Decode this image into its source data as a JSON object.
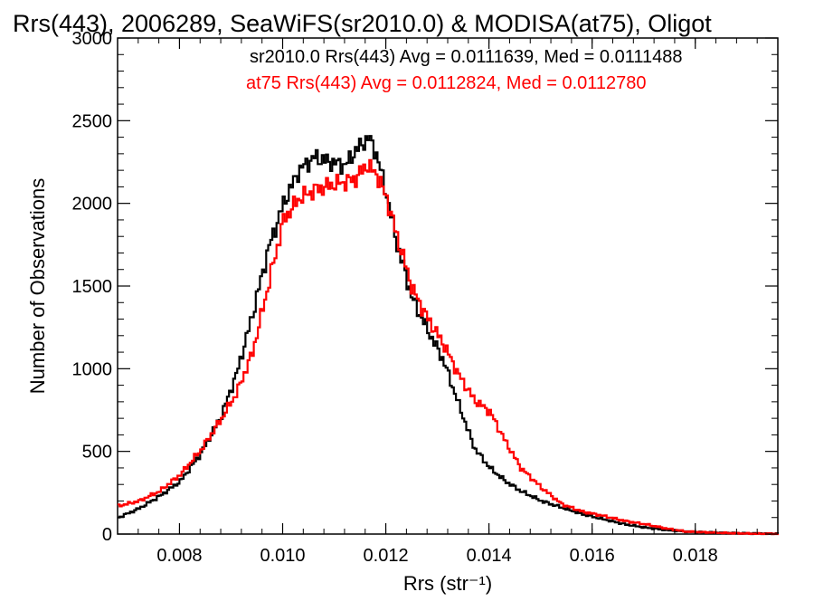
{
  "chart_data": {
    "type": "line",
    "title": "Rrs(443), 2006289, SeaWiFS(sr2010.0) & MODISA(at75), Oligot",
    "xlabel": "Rrs (str⁻¹)",
    "ylabel": "Number of Observations",
    "xlim": [
      0.0068,
      0.0196
    ],
    "ylim": [
      0,
      3000
    ],
    "x_ticks": [
      "0.008",
      "0.010",
      "0.012",
      "0.014",
      "0.016",
      "0.018"
    ],
    "y_ticks": [
      "0",
      "500",
      "1000",
      "1500",
      "2000",
      "2500",
      "3000"
    ],
    "annotations": [
      "sr2010.0 Rrs(443) Avg = 0.0111639, Med = 0.0111488",
      "at75 Rrs(443) Avg = 0.0112824, Med = 0.0112780"
    ],
    "series": [
      {
        "color": "#000000",
        "points": [
          [
            0.0068,
            100
          ],
          [
            0.0072,
            155
          ],
          [
            0.0076,
            230
          ],
          [
            0.008,
            320
          ],
          [
            0.0084,
            490
          ],
          [
            0.0088,
            720
          ],
          [
            0.0091,
            980
          ],
          [
            0.0094,
            1330
          ],
          [
            0.0097,
            1720
          ],
          [
            0.01,
            2000
          ],
          [
            0.0103,
            2200
          ],
          [
            0.0106,
            2280
          ],
          [
            0.0109,
            2250
          ],
          [
            0.0112,
            2230
          ],
          [
            0.0114,
            2320
          ],
          [
            0.01165,
            2400
          ],
          [
            0.0118,
            2300
          ],
          [
            0.012,
            2050
          ],
          [
            0.0122,
            1750
          ],
          [
            0.0125,
            1420
          ],
          [
            0.0128,
            1230
          ],
          [
            0.0131,
            1050
          ],
          [
            0.0134,
            780
          ],
          [
            0.0137,
            520
          ],
          [
            0.014,
            400
          ],
          [
            0.0143,
            320
          ],
          [
            0.0146,
            260
          ],
          [
            0.015,
            200
          ],
          [
            0.0154,
            160
          ],
          [
            0.0158,
            120
          ],
          [
            0.0162,
            90
          ],
          [
            0.0166,
            60
          ],
          [
            0.017,
            40
          ],
          [
            0.0174,
            25
          ],
          [
            0.0178,
            15
          ],
          [
            0.0184,
            8
          ],
          [
            0.019,
            4
          ],
          [
            0.0196,
            2
          ]
        ]
      },
      {
        "color": "#ff0000",
        "points": [
          [
            0.0068,
            170
          ],
          [
            0.0072,
            200
          ],
          [
            0.0076,
            260
          ],
          [
            0.008,
            360
          ],
          [
            0.0084,
            510
          ],
          [
            0.0088,
            700
          ],
          [
            0.0091,
            860
          ],
          [
            0.0094,
            1100
          ],
          [
            0.0097,
            1500
          ],
          [
            0.01,
            1900
          ],
          [
            0.0103,
            2030
          ],
          [
            0.0106,
            2080
          ],
          [
            0.0109,
            2110
          ],
          [
            0.0112,
            2130
          ],
          [
            0.0114,
            2150
          ],
          [
            0.0116,
            2230
          ],
          [
            0.0118,
            2180
          ],
          [
            0.012,
            2030
          ],
          [
            0.0122,
            1800
          ],
          [
            0.0125,
            1480
          ],
          [
            0.0128,
            1300
          ],
          [
            0.0131,
            1150
          ],
          [
            0.0134,
            960
          ],
          [
            0.0137,
            810
          ],
          [
            0.014,
            740
          ],
          [
            0.0143,
            560
          ],
          [
            0.0146,
            400
          ],
          [
            0.015,
            280
          ],
          [
            0.0154,
            180
          ],
          [
            0.0158,
            135
          ],
          [
            0.0162,
            110
          ],
          [
            0.0166,
            80
          ],
          [
            0.017,
            60
          ],
          [
            0.0174,
            35
          ],
          [
            0.0178,
            15
          ],
          [
            0.0184,
            8
          ],
          [
            0.019,
            3
          ],
          [
            0.0196,
            1
          ]
        ]
      }
    ],
    "axis_color": "#000000",
    "red_color": "#ff0000"
  }
}
